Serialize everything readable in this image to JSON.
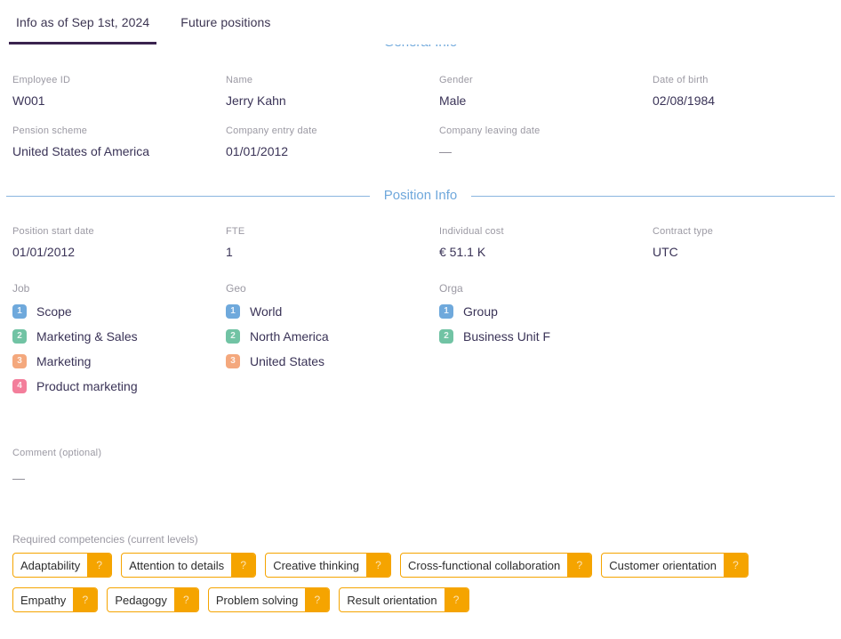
{
  "tabs": [
    {
      "label": "Info as of Sep 1st, 2024"
    },
    {
      "label": "Future positions"
    }
  ],
  "general_info": {
    "title": "General Info",
    "fields": [
      {
        "label": "Employee ID",
        "value": "W001"
      },
      {
        "label": "Name",
        "value": "Jerry Kahn"
      },
      {
        "label": "Gender",
        "value": "Male"
      },
      {
        "label": "Date of birth",
        "value": "02/08/1984"
      },
      {
        "label": "Pension scheme",
        "value": "United States of America"
      },
      {
        "label": "Company entry date",
        "value": "01/01/2012"
      },
      {
        "label": "Company leaving date",
        "value": "—"
      }
    ]
  },
  "position_info": {
    "title": "Position Info",
    "fields": [
      {
        "label": "Position start date",
        "value": "01/01/2012"
      },
      {
        "label": "FTE",
        "value": "1"
      },
      {
        "label": "Individual cost",
        "value": "€ 51.1 K"
      },
      {
        "label": "Contract type",
        "value": "UTC"
      }
    ],
    "hierarchies": [
      {
        "label": "Job",
        "items": [
          {
            "n": "1",
            "label": "Scope"
          },
          {
            "n": "2",
            "label": "Marketing & Sales"
          },
          {
            "n": "3",
            "label": "Marketing"
          },
          {
            "n": "4",
            "label": "Product marketing"
          }
        ]
      },
      {
        "label": "Geo",
        "items": [
          {
            "n": "1",
            "label": "World"
          },
          {
            "n": "2",
            "label": "North America"
          },
          {
            "n": "3",
            "label": "United States"
          }
        ]
      },
      {
        "label": "Orga",
        "items": [
          {
            "n": "1",
            "label": "Group"
          },
          {
            "n": "2",
            "label": "Business Unit F"
          }
        ]
      }
    ],
    "comment": {
      "label": "Comment (optional)",
      "value": "—"
    },
    "competencies": {
      "label": "Required competencies (current levels)",
      "help_symbol": "?",
      "items": [
        "Adaptability",
        "Attention to details",
        "Creative thinking",
        "Cross-functional collaboration",
        "Customer orientation",
        "Empathy",
        "Pedagogy",
        "Problem solving",
        "Result orientation"
      ]
    }
  },
  "colors": {
    "accent_blue": "#6fa8dc",
    "tab_underline": "#3a234f",
    "text_dark": "#3a3357",
    "label_gray": "#9b99a3",
    "chip_amber": "#f5a400",
    "level_badge_colors": [
      "#6fa9dc",
      "#71c3a4",
      "#f4a87d",
      "#f37e9b"
    ]
  }
}
